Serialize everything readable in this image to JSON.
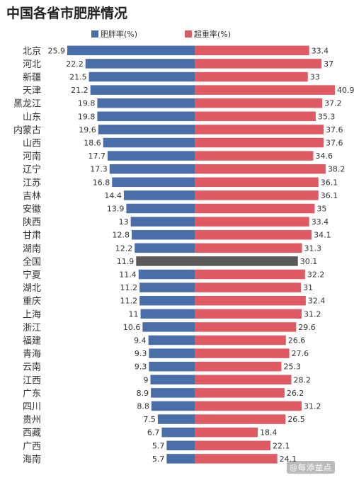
{
  "chart_data": {
    "type": "bar",
    "title": "中国各省市肥胖情况",
    "categories": [
      "北京",
      "河北",
      "新疆",
      "天津",
      "黑龙江",
      "山东",
      "内蒙古",
      "山西",
      "河南",
      "辽宁",
      "江苏",
      "吉林",
      "安徽",
      "陕西",
      "甘肃",
      "湖南",
      "全国",
      "宁夏",
      "湖北",
      "重庆",
      "上海",
      "浙江",
      "福建",
      "青海",
      "云南",
      "江西",
      "广东",
      "四川",
      "贵州",
      "西藏",
      "广西",
      "海南"
    ],
    "series": [
      {
        "name": "肥胖率(%)",
        "color": "#4a6fa8",
        "values": [
          25.9,
          22.2,
          21.5,
          21.2,
          19.8,
          19.8,
          19.6,
          18.6,
          17.7,
          17.3,
          16.8,
          14.4,
          13.9,
          13,
          12.8,
          12.2,
          11.9,
          11.4,
          11.2,
          11.2,
          11,
          10.6,
          9.4,
          9.3,
          9.3,
          9,
          8.9,
          8.8,
          7.5,
          6.7,
          5.7,
          5.7
        ]
      },
      {
        "name": "超重率(%)",
        "color": "#e05a63",
        "values": [
          33.4,
          37,
          33,
          40.9,
          37.2,
          35.3,
          37.6,
          37.6,
          34.6,
          38.2,
          36.1,
          36.1,
          35,
          33.4,
          34.1,
          31.3,
          30.1,
          32.2,
          31,
          32.4,
          31.2,
          29.6,
          26.6,
          27.6,
          25.3,
          28.2,
          26.2,
          31.2,
          26.5,
          18.4,
          22.1,
          24.1
        ]
      }
    ],
    "highlight_category": "全国",
    "highlight_color": "#595959",
    "legend_position": "top",
    "grid": false
  },
  "watermark": "@每添益点"
}
